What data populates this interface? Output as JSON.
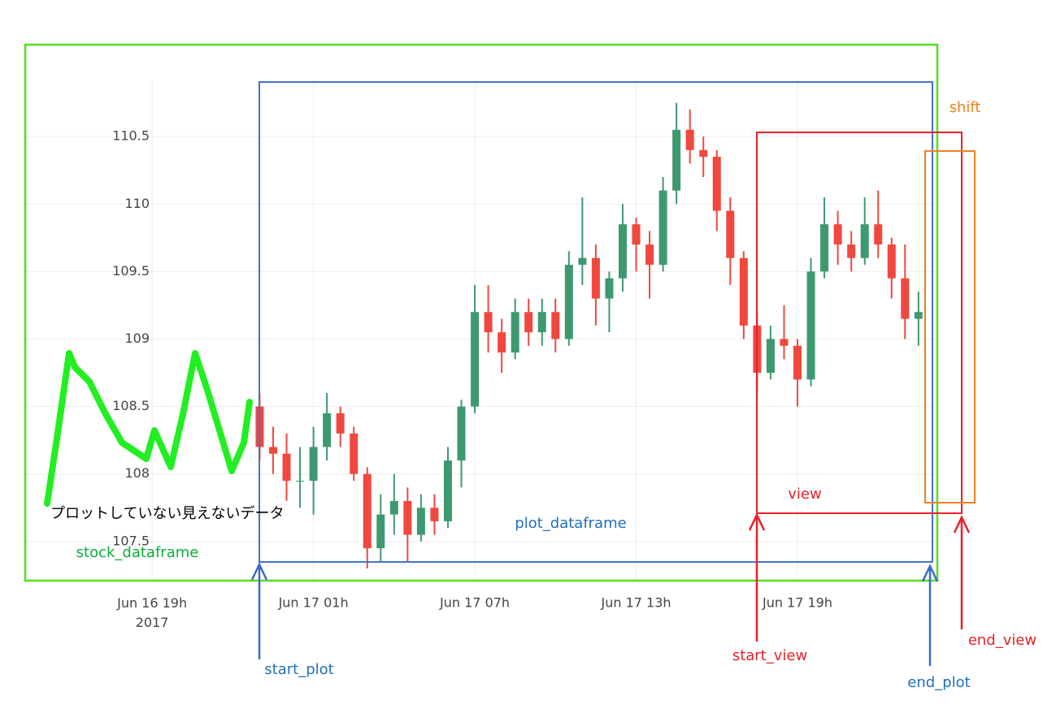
{
  "chart_data": {
    "type": "candlestick",
    "x": [
      "2017-06-16 23:00",
      "2017-06-16 23:30",
      "2017-06-17 00:00",
      "2017-06-17 00:30",
      "2017-06-17 01:00",
      "2017-06-17 01:30",
      "2017-06-17 02:00",
      "2017-06-17 02:30",
      "2017-06-17 03:00",
      "2017-06-17 03:30",
      "2017-06-17 04:00",
      "2017-06-17 04:30",
      "2017-06-17 05:00",
      "2017-06-17 05:30",
      "2017-06-17 06:00",
      "2017-06-17 06:30",
      "2017-06-17 07:00",
      "2017-06-17 07:30",
      "2017-06-17 08:00",
      "2017-06-17 08:30",
      "2017-06-17 09:00",
      "2017-06-17 09:30",
      "2017-06-17 10:00",
      "2017-06-17 10:30",
      "2017-06-17 11:00",
      "2017-06-17 11:30",
      "2017-06-17 12:00",
      "2017-06-17 12:30",
      "2017-06-17 13:00",
      "2017-06-17 13:30",
      "2017-06-17 14:00",
      "2017-06-17 14:30",
      "2017-06-17 15:00",
      "2017-06-17 15:30",
      "2017-06-17 16:00",
      "2017-06-17 16:30",
      "2017-06-17 17:00",
      "2017-06-17 17:30",
      "2017-06-17 18:00",
      "2017-06-17 18:30",
      "2017-06-17 19:00",
      "2017-06-17 19:30",
      "2017-06-17 20:00",
      "2017-06-17 20:30",
      "2017-06-17 21:00",
      "2017-06-17 21:30",
      "2017-06-17 22:00",
      "2017-06-17 22:30",
      "2017-06-17 23:00",
      "2017-06-17 23:30"
    ],
    "open": [
      108.5,
      108.2,
      108.15,
      107.95,
      107.95,
      108.2,
      108.45,
      108.3,
      108.0,
      107.45,
      107.7,
      107.8,
      107.55,
      107.75,
      107.65,
      108.1,
      108.5,
      109.2,
      109.05,
      108.9,
      109.2,
      109.05,
      109.2,
      109.0,
      109.55,
      109.6,
      109.3,
      109.45,
      109.85,
      109.7,
      109.55,
      110.1,
      110.55,
      110.4,
      110.35,
      109.95,
      109.6,
      109.1,
      108.75,
      109.0,
      108.95,
      108.7,
      109.5,
      109.85,
      109.7,
      109.6,
      109.85,
      109.7,
      109.45,
      109.15
    ],
    "high": [
      108.6,
      108.35,
      108.3,
      108.2,
      108.35,
      108.6,
      108.5,
      108.35,
      108.05,
      107.85,
      108.0,
      107.9,
      107.85,
      107.85,
      108.2,
      108.55,
      109.4,
      109.4,
      109.15,
      109.3,
      109.3,
      109.3,
      109.3,
      109.65,
      110.05,
      109.7,
      109.5,
      110.0,
      109.9,
      109.8,
      110.2,
      110.75,
      110.7,
      110.5,
      110.4,
      110.05,
      109.65,
      109.2,
      109.1,
      109.25,
      109.0,
      109.6,
      110.05,
      109.95,
      109.8,
      110.05,
      110.1,
      109.75,
      109.7,
      109.35
    ],
    "low": [
      108.1,
      108.0,
      107.8,
      107.75,
      107.7,
      108.1,
      108.2,
      107.95,
      107.3,
      107.35,
      107.55,
      107.35,
      107.5,
      107.55,
      107.6,
      107.9,
      108.45,
      108.9,
      108.75,
      108.85,
      108.95,
      108.95,
      108.9,
      108.95,
      109.4,
      109.1,
      109.05,
      109.35,
      109.5,
      109.3,
      109.5,
      110.0,
      110.3,
      110.2,
      109.8,
      109.4,
      109.0,
      108.6,
      108.7,
      108.85,
      108.5,
      108.65,
      109.45,
      109.55,
      109.5,
      109.55,
      109.6,
      109.3,
      109.0,
      108.95
    ],
    "close": [
      108.2,
      108.15,
      107.95,
      107.95,
      108.2,
      108.45,
      108.3,
      108.0,
      107.45,
      107.7,
      107.8,
      107.55,
      107.75,
      107.65,
      108.1,
      108.5,
      109.2,
      109.05,
      108.9,
      109.2,
      109.05,
      109.2,
      109.0,
      109.55,
      109.6,
      109.3,
      109.45,
      109.85,
      109.7,
      109.55,
      110.1,
      110.55,
      110.4,
      110.35,
      109.95,
      109.6,
      109.1,
      108.75,
      109.0,
      108.95,
      108.7,
      109.5,
      109.85,
      109.7,
      109.6,
      109.85,
      109.7,
      109.45,
      109.15,
      109.2
    ],
    "increasing_color": "#3d9970",
    "decreasing_color": "#f0483e",
    "xlim": [
      "2017-06-16 14:15",
      "2017-06-18 00:12"
    ],
    "xticks": [
      {
        "value": "2017-06-16 19:00",
        "label": "Jun 16 19h\n2017"
      },
      {
        "value": "2017-06-17 01:00",
        "label": "Jun 17 01h"
      },
      {
        "value": "2017-06-17 07:00",
        "label": "Jun 17 07h"
      },
      {
        "value": "2017-06-17 13:00",
        "label": "Jun 17 13h"
      },
      {
        "value": "2017-06-17 19:00",
        "label": "Jun 17 19h"
      }
    ],
    "ylim": [
      107.21,
      110.91
    ],
    "yticks": [
      107.5,
      108,
      108.5,
      109,
      109.5,
      110,
      110.5
    ],
    "grid": true,
    "annotations": [
      "shift",
      "view",
      "plot_dataframe",
      "stock_dataframe",
      "プロットしていない見えないデータ",
      "start_plot",
      "end_plot",
      "start_view",
      "end_view"
    ]
  }
}
